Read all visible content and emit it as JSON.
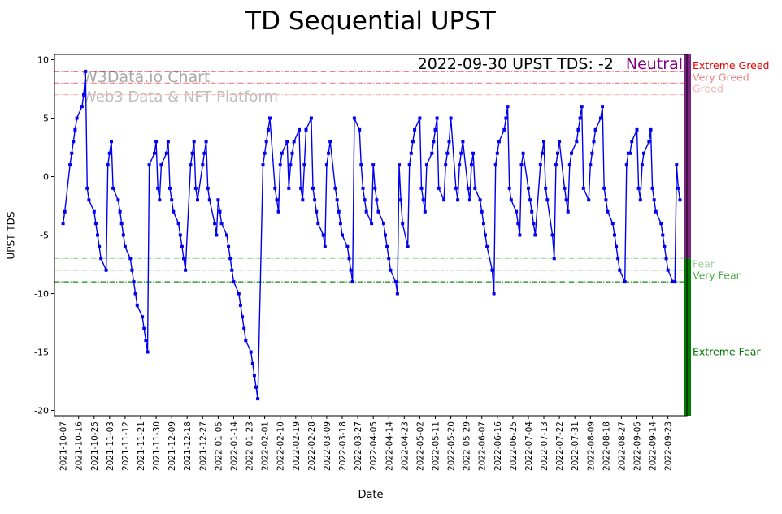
{
  "page": {
    "title": "TD Sequential UPST"
  },
  "annotation": {
    "text": "2022-09-30 UPST TDS: -2",
    "status": "Neutral",
    "status_color": "#800080"
  },
  "watermark": {
    "line1": "W3Data.io Chart",
    "line2": "Web3 Data & NFT Platform"
  },
  "chart_data": {
    "type": "line",
    "title": "TD Sequential UPST",
    "xlabel": "Date",
    "ylabel": "UPST TDS",
    "series_name": "UPST TDS",
    "line_color": "#0000ee",
    "ylim": [
      -20.45,
      10.45
    ],
    "yticks": [
      10,
      5,
      0,
      -5,
      -10,
      -15,
      -20
    ],
    "start_date": "2021-10-07",
    "skip_weekends": true,
    "last_date": "2022-09-30",
    "last_value": -2,
    "values": [
      -4,
      -3,
      1,
      2,
      3,
      4,
      5,
      6,
      7,
      9,
      -1,
      -2,
      -3,
      -4,
      -5,
      -6,
      -7,
      -8,
      1,
      2,
      3,
      -1,
      -2,
      -3,
      -4,
      -5,
      -6,
      -7,
      -8,
      -9,
      -10,
      -11,
      -12,
      -13,
      -14,
      -15,
      1,
      2,
      3,
      -1,
      -2,
      1,
      2,
      3,
      -1,
      -2,
      -3,
      -4,
      -5,
      -6,
      -7,
      -8,
      1,
      2,
      3,
      -1,
      -2,
      1,
      2,
      3,
      -1,
      -2,
      -4,
      -5,
      -2,
      -3,
      -4,
      -5,
      -6,
      -7,
      -8,
      -9,
      -10,
      -11,
      -12,
      -13,
      -14,
      -15,
      -16,
      -17,
      -18,
      -19,
      1,
      2,
      3,
      4,
      5,
      -1,
      -2,
      -3,
      1,
      2,
      3,
      -1,
      1,
      2,
      3,
      4,
      -1,
      -2,
      1,
      4,
      5,
      -1,
      -2,
      -3,
      -4,
      -5,
      -6,
      1,
      2,
      3,
      -1,
      -2,
      -3,
      -4,
      -5,
      -6,
      -7,
      -8,
      -9,
      5,
      4,
      1,
      -1,
      -2,
      -3,
      -4,
      1,
      -1,
      -2,
      -3,
      -4,
      -5,
      -6,
      -7,
      -8,
      -9,
      -10,
      1,
      -2,
      -4,
      -6,
      1,
      2,
      3,
      4,
      5,
      -1,
      -2,
      -3,
      1,
      2,
      3,
      4,
      5,
      -1,
      -2,
      1,
      2,
      3,
      5,
      -1,
      -2,
      1,
      2,
      3,
      -1,
      -2,
      1,
      2,
      -1,
      -2,
      -3,
      -4,
      -5,
      -6,
      -8,
      -10,
      1,
      2,
      3,
      4,
      5,
      6,
      -1,
      -2,
      -3,
      -4,
      -5,
      1,
      2,
      -1,
      -2,
      -3,
      -4,
      -5,
      1,
      2,
      3,
      -1,
      -2,
      -5,
      -7,
      1,
      2,
      3,
      -1,
      -2,
      -3,
      1,
      2,
      3,
      4,
      5,
      6,
      -1,
      -2,
      1,
      2,
      3,
      4,
      5,
      6,
      -1,
      -2,
      -3,
      -4,
      -5,
      -6,
      -7,
      -8,
      -9,
      1,
      2,
      2,
      3,
      4,
      -1,
      -2,
      1,
      2,
      3,
      4,
      -1,
      -2,
      -3,
      -4,
      -5,
      -6,
      -7,
      -8,
      -9,
      -9,
      1,
      -1,
      -2
    ],
    "xtick_labels": [
      "2021-10-07",
      "2021-10-16",
      "2021-10-25",
      "2021-11-03",
      "2021-11-12",
      "2021-11-21",
      "2021-11-30",
      "2021-12-09",
      "2021-12-18",
      "2021-12-27",
      "2022-01-05",
      "2022-01-14",
      "2022-01-23",
      "2022-02-01",
      "2022-02-10",
      "2022-02-19",
      "2022-02-28",
      "2022-03-09",
      "2022-03-18",
      "2022-03-27",
      "2022-04-05",
      "2022-04-14",
      "2022-04-23",
      "2022-05-02",
      "2022-05-11",
      "2022-05-20",
      "2022-05-29",
      "2022-06-07",
      "2022-06-16",
      "2022-06-25",
      "2022-07-04",
      "2022-07-13",
      "2022-07-22",
      "2022-07-31",
      "2022-08-09",
      "2022-08-18",
      "2022-08-27",
      "2022-09-05",
      "2022-09-14",
      "2022-09-23"
    ],
    "thresholds": [
      {
        "y": 9,
        "label": "Extreme Greed",
        "color": "#e60000"
      },
      {
        "y": 8,
        "label": "Very Greed",
        "color": "#ea8080"
      },
      {
        "y": 7,
        "label": "Greed",
        "color": "#f4b4b4"
      },
      {
        "y": -7,
        "label": "Fear",
        "color": "#a4d2a4"
      },
      {
        "y": -8,
        "label": "Very Fear",
        "color": "#4fae4f"
      },
      {
        "y": -9,
        "label": "",
        "color": "#118811"
      }
    ],
    "extreme_fear_label": {
      "text": "Extreme Fear",
      "y": -15,
      "color": "#007700"
    },
    "right_bar": {
      "top_color": "#7c2483",
      "bottom_color": "#007d00",
      "split_y": -7
    },
    "legend": "none",
    "grid": false
  }
}
